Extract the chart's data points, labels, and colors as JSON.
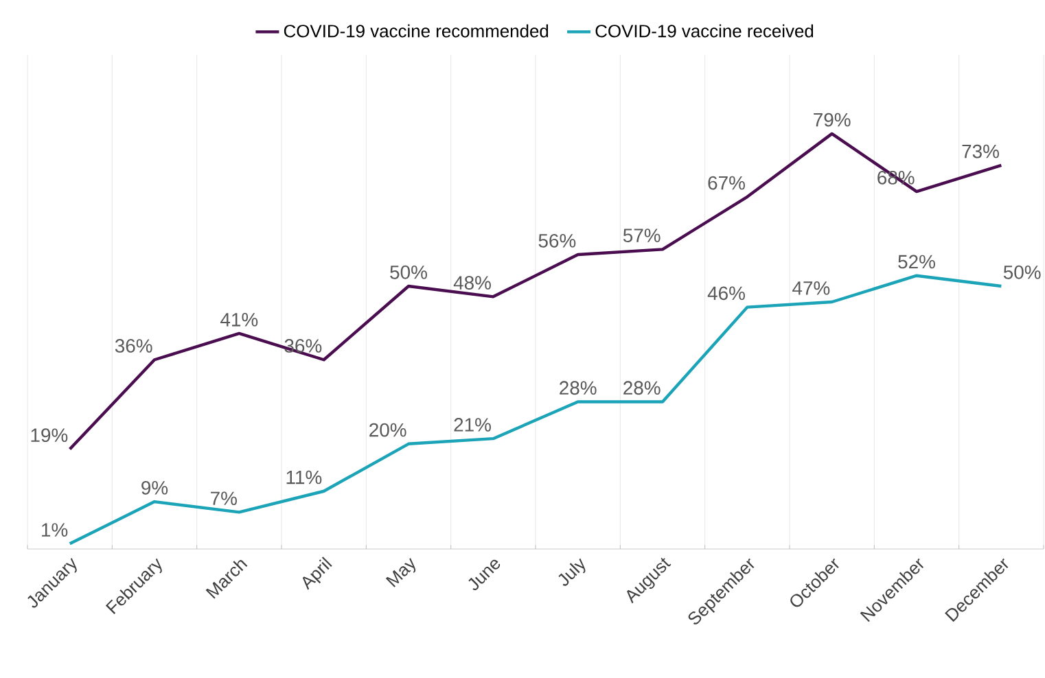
{
  "chart_data": {
    "type": "line",
    "categories": [
      "January",
      "February",
      "March",
      "April",
      "May",
      "June",
      "July",
      "August",
      "September",
      "October",
      "November",
      "December"
    ],
    "series": [
      {
        "name": "COVID-19 vaccine recommended",
        "color": "#4a0d4f",
        "values": [
          19,
          36,
          41,
          36,
          50,
          48,
          56,
          57,
          67,
          79,
          68,
          73
        ],
        "value_labels": [
          "19%",
          "36%",
          "41%",
          "36%",
          "50%",
          "48%",
          "56%",
          "57%",
          "67%",
          "79%",
          "68%",
          "73%"
        ]
      },
      {
        "name": "COVID-19 vaccine received",
        "color": "#1ba3b8",
        "values": [
          1,
          9,
          7,
          11,
          20,
          21,
          28,
          28,
          46,
          47,
          52,
          50
        ],
        "value_labels": [
          "1%",
          "9%",
          "7%",
          "11%",
          "20%",
          "21%",
          "28%",
          "28%",
          "46%",
          "47%",
          "52%",
          "50%"
        ]
      }
    ],
    "ylim": [
      0,
      94
    ],
    "tick_labels": "x",
    "grid": "x",
    "legend": "top",
    "marker": "none"
  }
}
